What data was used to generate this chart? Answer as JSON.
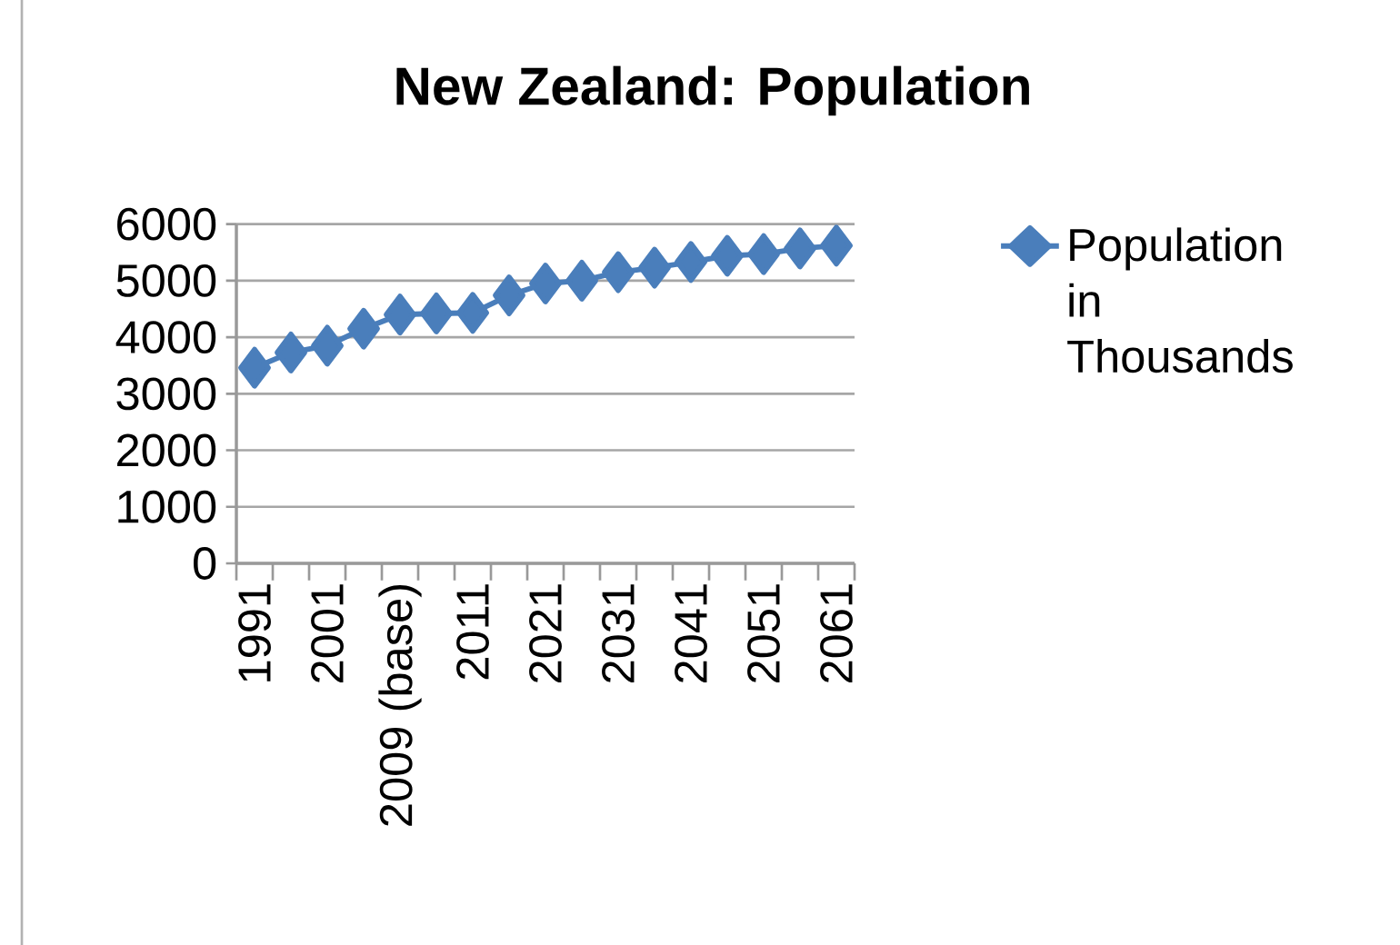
{
  "chart_data": {
    "type": "line",
    "title": "New Zealand: Population",
    "categories": [
      "1991",
      null,
      "2001",
      null,
      "2009 (base)",
      null,
      "2011",
      null,
      "2021",
      null,
      "2031",
      null,
      "2041",
      null,
      "2051",
      null,
      "2061"
    ],
    "series": [
      {
        "name": "Population in Thousands",
        "color": "#4a7ebb",
        "values": [
          3460,
          3730,
          3850,
          4150,
          4400,
          4420,
          4430,
          4740,
          4950,
          5000,
          5150,
          5230,
          5330,
          5440,
          5470,
          5570,
          5620
        ]
      }
    ],
    "ylim": [
      0,
      6000
    ],
    "yticks": [
      0,
      1000,
      2000,
      3000,
      4000,
      5000,
      6000
    ],
    "grid": "y",
    "legend": "right",
    "marker": "diamond",
    "line_style": "solid"
  }
}
